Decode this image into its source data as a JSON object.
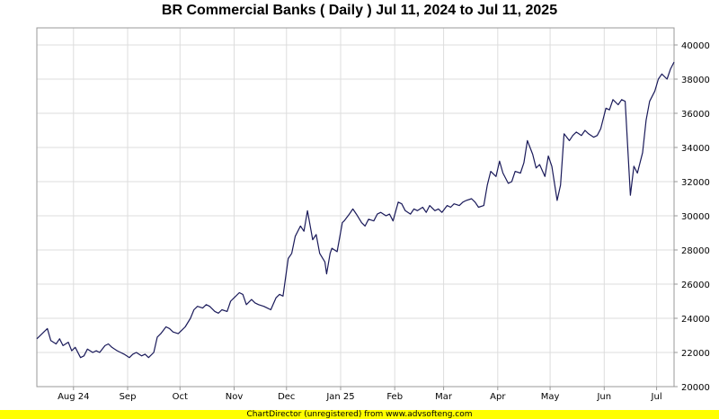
{
  "chart_data": {
    "type": "line",
    "title": "BR Commercial Banks ( Daily ) Jul 11, 2024 to Jul 11, 2025",
    "ylim": [
      20000,
      41000
    ],
    "y_ticks": [
      20000,
      22000,
      24000,
      26000,
      28000,
      30000,
      32000,
      34000,
      36000,
      38000,
      40000
    ],
    "x_range": [
      "2024-07-11",
      "2025-07-11"
    ],
    "x_ticks": [
      {
        "label": "Aug 24",
        "date": "2024-08-01"
      },
      {
        "label": "Sep",
        "date": "2024-09-01"
      },
      {
        "label": "Oct",
        "date": "2024-10-01"
      },
      {
        "label": "Nov",
        "date": "2024-11-01"
      },
      {
        "label": "Dec",
        "date": "2024-12-01"
      },
      {
        "label": "Jan 25",
        "date": "2025-01-01"
      },
      {
        "label": "Feb",
        "date": "2025-02-01"
      },
      {
        "label": "Mar",
        "date": "2025-03-01"
      },
      {
        "label": "Apr",
        "date": "2025-04-01"
      },
      {
        "label": "May",
        "date": "2025-05-01"
      },
      {
        "label": "Jun",
        "date": "2025-06-01"
      },
      {
        "label": "Jul",
        "date": "2025-07-01"
      }
    ],
    "grid": true,
    "line_color": "#1a1a5a",
    "series": [
      {
        "points": [
          [
            "2024-07-11",
            22800
          ],
          [
            "2024-07-15",
            23200
          ],
          [
            "2024-07-17",
            23400
          ],
          [
            "2024-07-19",
            22700
          ],
          [
            "2024-07-22",
            22500
          ],
          [
            "2024-07-24",
            22800
          ],
          [
            "2024-07-26",
            22400
          ],
          [
            "2024-07-29",
            22600
          ],
          [
            "2024-07-31",
            22100
          ],
          [
            "2024-08-02",
            22300
          ],
          [
            "2024-08-05",
            21700
          ],
          [
            "2024-08-07",
            21800
          ],
          [
            "2024-08-09",
            22200
          ],
          [
            "2024-08-12",
            22000
          ],
          [
            "2024-08-14",
            22100
          ],
          [
            "2024-08-16",
            22000
          ],
          [
            "2024-08-19",
            22400
          ],
          [
            "2024-08-21",
            22500
          ],
          [
            "2024-08-23",
            22300
          ],
          [
            "2024-08-26",
            22100
          ],
          [
            "2024-08-28",
            22000
          ],
          [
            "2024-08-30",
            21900
          ],
          [
            "2024-09-02",
            21700
          ],
          [
            "2024-09-04",
            21900
          ],
          [
            "2024-09-06",
            22000
          ],
          [
            "2024-09-09",
            21800
          ],
          [
            "2024-09-11",
            21900
          ],
          [
            "2024-09-13",
            21700
          ],
          [
            "2024-09-16",
            22000
          ],
          [
            "2024-09-18",
            22900
          ],
          [
            "2024-09-20",
            23100
          ],
          [
            "2024-09-23",
            23500
          ],
          [
            "2024-09-25",
            23400
          ],
          [
            "2024-09-27",
            23200
          ],
          [
            "2024-09-30",
            23100
          ],
          [
            "2024-10-02",
            23300
          ],
          [
            "2024-10-04",
            23500
          ],
          [
            "2024-10-07",
            24000
          ],
          [
            "2024-10-09",
            24500
          ],
          [
            "2024-10-11",
            24700
          ],
          [
            "2024-10-14",
            24600
          ],
          [
            "2024-10-16",
            24800
          ],
          [
            "2024-10-18",
            24700
          ],
          [
            "2024-10-21",
            24400
          ],
          [
            "2024-10-23",
            24300
          ],
          [
            "2024-10-25",
            24500
          ],
          [
            "2024-10-28",
            24400
          ],
          [
            "2024-10-30",
            25000
          ],
          [
            "2024-11-01",
            25200
          ],
          [
            "2024-11-04",
            25500
          ],
          [
            "2024-11-06",
            25400
          ],
          [
            "2024-11-08",
            24800
          ],
          [
            "2024-11-11",
            25100
          ],
          [
            "2024-11-13",
            24900
          ],
          [
            "2024-11-15",
            24800
          ],
          [
            "2024-11-18",
            24700
          ],
          [
            "2024-11-20",
            24600
          ],
          [
            "2024-11-22",
            24500
          ],
          [
            "2024-11-25",
            25200
          ],
          [
            "2024-11-27",
            25400
          ],
          [
            "2024-11-29",
            25300
          ],
          [
            "2024-12-02",
            27500
          ],
          [
            "2024-12-04",
            27800
          ],
          [
            "2024-12-06",
            28800
          ],
          [
            "2024-12-09",
            29400
          ],
          [
            "2024-12-11",
            29100
          ],
          [
            "2024-12-13",
            30300
          ],
          [
            "2024-12-16",
            28600
          ],
          [
            "2024-12-18",
            28900
          ],
          [
            "2024-12-20",
            27800
          ],
          [
            "2024-12-23",
            27300
          ],
          [
            "2024-12-24",
            26600
          ],
          [
            "2024-12-26",
            27800
          ],
          [
            "2024-12-27",
            28100
          ],
          [
            "2024-12-30",
            27900
          ],
          [
            "2025-01-02",
            29600
          ],
          [
            "2025-01-03",
            29700
          ],
          [
            "2025-01-06",
            30100
          ],
          [
            "2025-01-08",
            30400
          ],
          [
            "2025-01-10",
            30100
          ],
          [
            "2025-01-13",
            29600
          ],
          [
            "2025-01-15",
            29400
          ],
          [
            "2025-01-17",
            29800
          ],
          [
            "2025-01-20",
            29700
          ],
          [
            "2025-01-22",
            30100
          ],
          [
            "2025-01-24",
            30200
          ],
          [
            "2025-01-27",
            30000
          ],
          [
            "2025-01-29",
            30100
          ],
          [
            "2025-01-31",
            29700
          ],
          [
            "2025-02-03",
            30800
          ],
          [
            "2025-02-05",
            30700
          ],
          [
            "2025-02-07",
            30300
          ],
          [
            "2025-02-10",
            30100
          ],
          [
            "2025-02-12",
            30400
          ],
          [
            "2025-02-14",
            30300
          ],
          [
            "2025-02-17",
            30500
          ],
          [
            "2025-02-19",
            30200
          ],
          [
            "2025-02-21",
            30600
          ],
          [
            "2025-02-24",
            30300
          ],
          [
            "2025-02-26",
            30400
          ],
          [
            "2025-02-28",
            30200
          ],
          [
            "2025-03-03",
            30600
          ],
          [
            "2025-03-05",
            30500
          ],
          [
            "2025-03-07",
            30700
          ],
          [
            "2025-03-10",
            30600
          ],
          [
            "2025-03-12",
            30800
          ],
          [
            "2025-03-14",
            30900
          ],
          [
            "2025-03-17",
            31000
          ],
          [
            "2025-03-19",
            30800
          ],
          [
            "2025-03-21",
            30500
          ],
          [
            "2025-03-24",
            30600
          ],
          [
            "2025-03-26",
            31800
          ],
          [
            "2025-03-28",
            32600
          ],
          [
            "2025-03-31",
            32300
          ],
          [
            "2025-04-02",
            33200
          ],
          [
            "2025-04-04",
            32500
          ],
          [
            "2025-04-07",
            31900
          ],
          [
            "2025-04-09",
            32000
          ],
          [
            "2025-04-11",
            32600
          ],
          [
            "2025-04-14",
            32500
          ],
          [
            "2025-04-16",
            33100
          ],
          [
            "2025-04-18",
            34400
          ],
          [
            "2025-04-21",
            33600
          ],
          [
            "2025-04-23",
            32800
          ],
          [
            "2025-04-25",
            33000
          ],
          [
            "2025-04-28",
            32300
          ],
          [
            "2025-04-30",
            33500
          ],
          [
            "2025-05-02",
            32900
          ],
          [
            "2025-05-05",
            30900
          ],
          [
            "2025-05-07",
            31800
          ],
          [
            "2025-05-09",
            34800
          ],
          [
            "2025-05-12",
            34400
          ],
          [
            "2025-05-14",
            34700
          ],
          [
            "2025-05-16",
            34900
          ],
          [
            "2025-05-19",
            34700
          ],
          [
            "2025-05-21",
            35000
          ],
          [
            "2025-05-23",
            34800
          ],
          [
            "2025-05-26",
            34600
          ],
          [
            "2025-05-28",
            34700
          ],
          [
            "2025-05-30",
            35100
          ],
          [
            "2025-06-02",
            36300
          ],
          [
            "2025-06-04",
            36200
          ],
          [
            "2025-06-06",
            36800
          ],
          [
            "2025-06-09",
            36500
          ],
          [
            "2025-06-11",
            36800
          ],
          [
            "2025-06-13",
            36700
          ],
          [
            "2025-06-16",
            31200
          ],
          [
            "2025-06-18",
            32900
          ],
          [
            "2025-06-20",
            32500
          ],
          [
            "2025-06-23",
            33700
          ],
          [
            "2025-06-25",
            35600
          ],
          [
            "2025-06-27",
            36700
          ],
          [
            "2025-06-30",
            37300
          ],
          [
            "2025-07-02",
            38000
          ],
          [
            "2025-07-04",
            38300
          ],
          [
            "2025-07-07",
            38000
          ],
          [
            "2025-07-09",
            38600
          ],
          [
            "2025-07-11",
            39000
          ]
        ]
      }
    ]
  },
  "footer": {
    "text": "ChartDirector (unregistered) from www.advsofteng.com",
    "background": "#ffff00"
  }
}
